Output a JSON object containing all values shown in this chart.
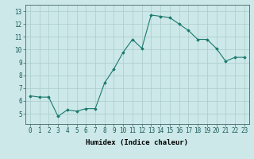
{
  "x": [
    0,
    1,
    2,
    3,
    4,
    5,
    6,
    7,
    8,
    9,
    10,
    11,
    12,
    13,
    14,
    15,
    16,
    17,
    18,
    19,
    20,
    21,
    22,
    23
  ],
  "y": [
    6.4,
    6.3,
    6.3,
    4.8,
    5.3,
    5.2,
    5.4,
    5.4,
    7.4,
    8.5,
    9.8,
    10.8,
    10.1,
    12.7,
    12.6,
    12.5,
    12.0,
    11.5,
    10.8,
    10.8,
    10.1,
    9.1,
    9.4,
    9.4
  ],
  "line_color": "#1a7a6e",
  "marker": "D",
  "marker_size": 1.8,
  "bg_color": "#cce8e8",
  "grid_color": "#aacccc",
  "xlabel": "Humidex (Indice chaleur)",
  "xlabel_fontsize": 6.5,
  "xlim": [
    -0.5,
    23.5
  ],
  "ylim": [
    4.2,
    13.5
  ],
  "yticks": [
    5,
    6,
    7,
    8,
    9,
    10,
    11,
    12,
    13
  ],
  "xticks": [
    0,
    1,
    2,
    3,
    4,
    5,
    6,
    7,
    8,
    9,
    10,
    11,
    12,
    13,
    14,
    15,
    16,
    17,
    18,
    19,
    20,
    21,
    22,
    23
  ],
  "tick_fontsize": 5.5,
  "ytick_fontsize": 5.5
}
